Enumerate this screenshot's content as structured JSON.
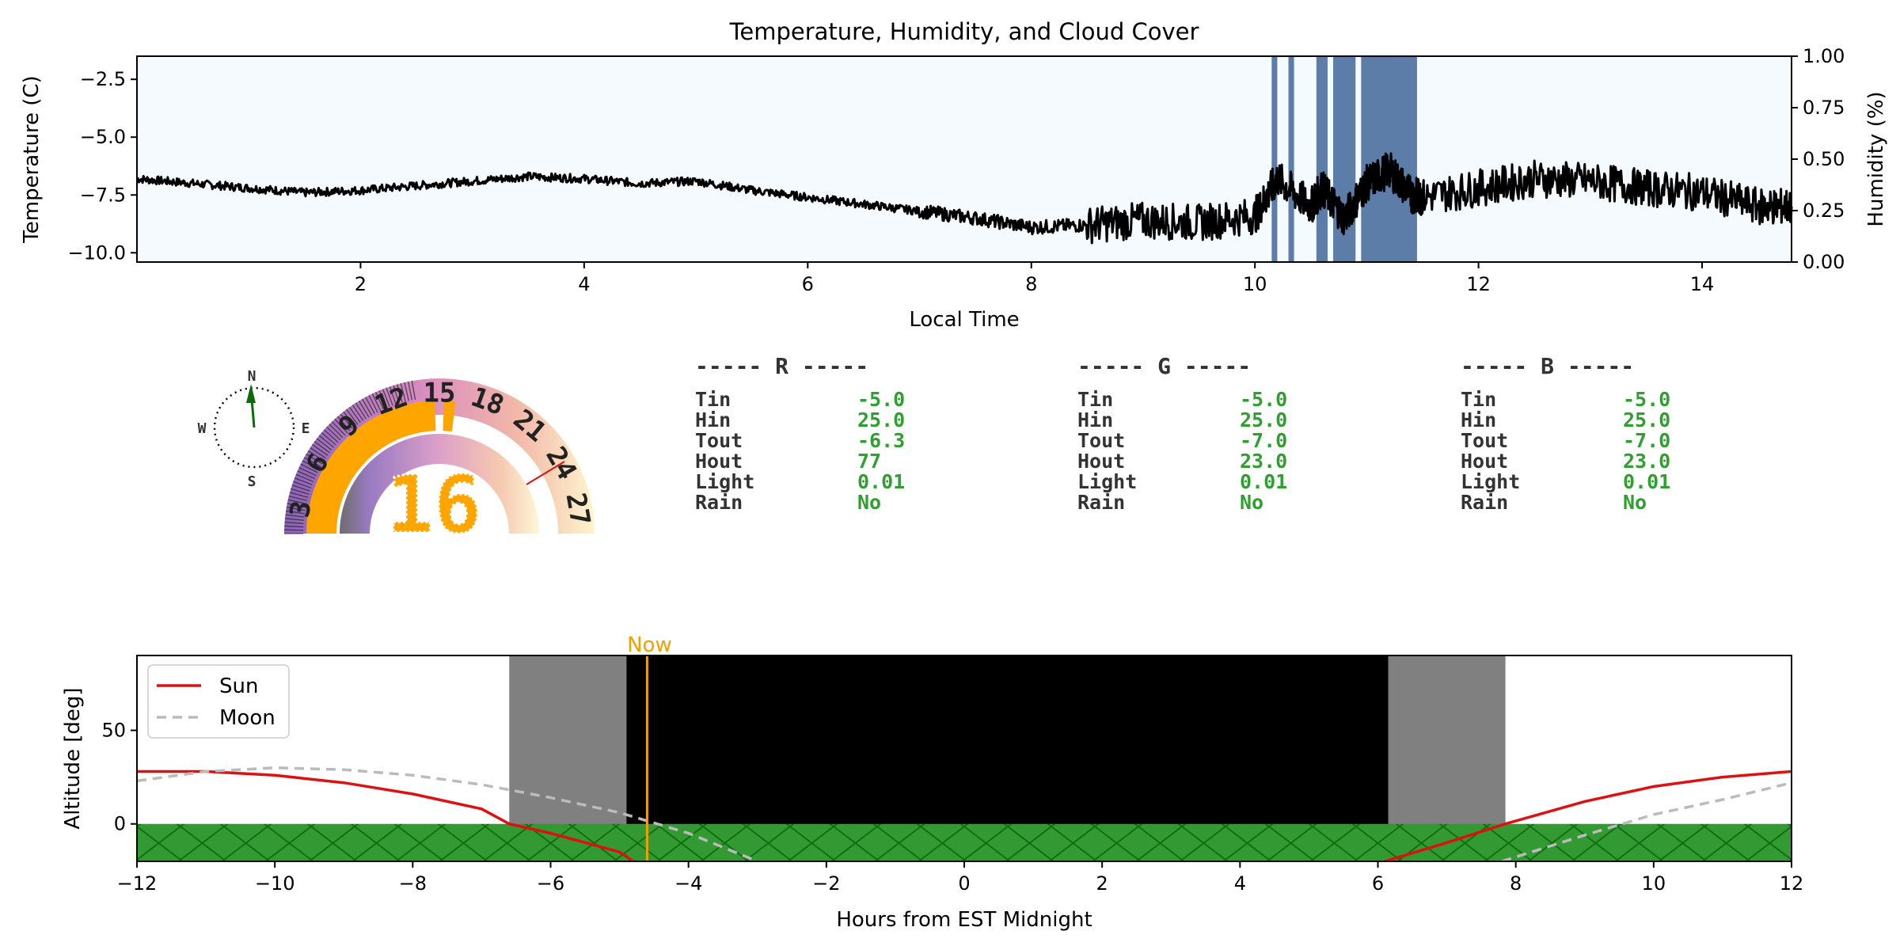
{
  "top_chart": {
    "title": "Temperature, Humidity, and Cloud Cover",
    "xlabel": "Local Time",
    "ylabel_left": "Temperature (C)",
    "ylabel_right": "Humidity (%)",
    "xlim": [
      0,
      14.8
    ],
    "ylim_left": [
      -10.4,
      -1.5
    ],
    "ylim_right": [
      0,
      1
    ],
    "x_ticks": [
      2,
      4,
      6,
      8,
      10,
      12,
      14
    ],
    "y_ticks_left": [
      -2.5,
      -5.0,
      -7.5,
      -10.0
    ],
    "y_ticks_right": [
      0.0,
      0.25,
      0.5,
      0.75,
      1.0
    ],
    "x_tick_labels": [
      "2",
      "4",
      "6",
      "8",
      "10",
      "12",
      "14"
    ],
    "y_tick_labels_left": [
      "−2.5",
      "−5.0",
      "−7.5",
      "−10.0"
    ],
    "y_tick_labels_right": [
      "0.00",
      "0.25",
      "0.50",
      "0.75",
      "1.00"
    ],
    "series_color": "#000000",
    "background_color": "#f5faff",
    "cloud_color": "#4a6f9e"
  },
  "chart_data": [
    {
      "type": "line",
      "title": "Temperature, Humidity, and Cloud Cover",
      "xlabel": "Local Time",
      "ylabel": "Temperature (C)",
      "ylabel_right": "Humidity (%)",
      "xlim": [
        0,
        14.8
      ],
      "ylim": [
        -10.4,
        -1.5
      ],
      "series": [
        {
          "x": [
            0,
            0.5,
            1,
            1.5,
            2,
            2.5,
            3,
            3.5,
            4,
            4.5,
            5,
            5.5,
            6,
            6.5,
            7,
            7.5,
            8,
            8.5,
            9,
            9.5,
            10,
            10.2,
            10.5,
            10.6,
            10.8,
            11,
            11.2,
            11.4,
            11.5,
            12,
            12.5,
            13,
            13.5,
            14,
            14.5,
            14.8
          ],
          "y": [
            -6.8,
            -7.0,
            -7.2,
            -7.4,
            -7.3,
            -7.1,
            -6.9,
            -6.7,
            -6.8,
            -7.0,
            -6.9,
            -7.3,
            -7.6,
            -7.9,
            -8.2,
            -8.5,
            -8.9,
            -8.8,
            -8.6,
            -8.7,
            -8.4,
            -6.8,
            -8.0,
            -7.2,
            -8.5,
            -7.0,
            -6.4,
            -7.5,
            -7.6,
            -7.2,
            -6.8,
            -6.9,
            -7.2,
            -7.4,
            -8.0,
            -8.0
          ]
        }
      ],
      "cloud_cover_bands": [
        [
          10.15,
          10.2
        ],
        [
          10.3,
          10.35
        ],
        [
          10.55,
          10.65
        ],
        [
          10.7,
          10.9
        ],
        [
          10.95,
          11.45
        ]
      ],
      "legend": "none",
      "grid": false
    },
    {
      "type": "line",
      "xlabel": "Hours from EST Midnight",
      "ylabel": "Altitude [deg]",
      "xlim": [
        -12,
        12
      ],
      "ylim": [
        -20,
        90
      ],
      "x_ticks": [
        -12,
        -10,
        -8,
        -6,
        -4,
        -2,
        0,
        2,
        4,
        6,
        8,
        10,
        12
      ],
      "y_ticks": [
        0,
        50
      ],
      "series": [
        {
          "name": "Sun",
          "x": [
            -12,
            -11,
            -10,
            -9,
            -8,
            -7,
            -6.6,
            -6,
            -5,
            -4.8
          ],
          "y": [
            28,
            28,
            26,
            22,
            16,
            8,
            0,
            -5,
            -15,
            -20
          ]
        },
        {
          "name": "Moon",
          "x": [
            -12,
            -11,
            -10,
            -9,
            -8,
            -7,
            -6,
            -5,
            -4,
            -3
          ],
          "y": [
            23,
            28,
            30,
            29,
            26,
            21,
            14,
            6,
            -5,
            -20
          ]
        },
        {
          "name": "Sun",
          "x": [
            6.1,
            7,
            7.85,
            9,
            10,
            11,
            12
          ],
          "y": [
            -20,
            -10,
            0,
            12,
            20,
            25,
            28
          ]
        },
        {
          "name": "Moon",
          "x": [
            7.8,
            9,
            10,
            11,
            12
          ],
          "y": [
            -20,
            -6,
            5,
            13,
            22
          ]
        }
      ],
      "twilight_bands": [
        [
          -6.6,
          -4.9
        ],
        [
          6.15,
          7.85
        ]
      ],
      "night_band": [
        -4.9,
        6.15
      ],
      "now_x": -4.6,
      "legend": "top-left",
      "grid": false
    }
  ],
  "compass": {
    "n": "N",
    "s": "S",
    "e": "E",
    "w": "W"
  },
  "dial": {
    "hour_labels": [
      "3",
      "6",
      "9",
      "12",
      "15",
      "18",
      "21",
      "24",
      "27"
    ],
    "big_number": "16",
    "accent": "#ffa500"
  },
  "stations": [
    {
      "header": "----- R -----",
      "rows": [
        {
          "label": "Tin",
          "value": "-5.0"
        },
        {
          "label": "Hin",
          "value": "25.0"
        },
        {
          "label": "Tout",
          "value": "-6.3"
        },
        {
          "label": "Hout",
          "value": "77"
        },
        {
          "label": "Light",
          "value": "0.01"
        },
        {
          "label": "Rain",
          "value": "No"
        }
      ]
    },
    {
      "header": "----- G -----",
      "rows": [
        {
          "label": "Tin",
          "value": "-5.0"
        },
        {
          "label": "Hin",
          "value": "25.0"
        },
        {
          "label": "Tout",
          "value": "-7.0"
        },
        {
          "label": "Hout",
          "value": "23.0"
        },
        {
          "label": "Light",
          "value": "0.01"
        },
        {
          "label": "Rain",
          "value": "No"
        }
      ]
    },
    {
      "header": "----- B -----",
      "rows": [
        {
          "label": "Tin",
          "value": "-5.0"
        },
        {
          "label": "Hin",
          "value": "25.0"
        },
        {
          "label": "Tout",
          "value": "-7.0"
        },
        {
          "label": "Hout",
          "value": "23.0"
        },
        {
          "label": "Light",
          "value": "0.01"
        },
        {
          "label": "Rain",
          "value": "No"
        }
      ]
    }
  ],
  "sky_chart": {
    "xlabel": "Hours from EST Midnight",
    "ylabel": "Altitude [deg]",
    "now_label": "Now",
    "legend": [
      {
        "label": "Sun",
        "color": "#dd1111",
        "dash": ""
      },
      {
        "label": "Moon",
        "color": "#bbbbbb",
        "dash": "12,8"
      }
    ],
    "x_tick_labels": [
      "−12",
      "−10",
      "−8",
      "−6",
      "−4",
      "−2",
      "0",
      "2",
      "4",
      "6",
      "8",
      "10",
      "12"
    ],
    "y_tick_labels": [
      "0",
      "50"
    ],
    "ground_color": "#339933",
    "twilight_color": "#808080",
    "night_color": "#000000",
    "now_color": "#f0a000"
  }
}
